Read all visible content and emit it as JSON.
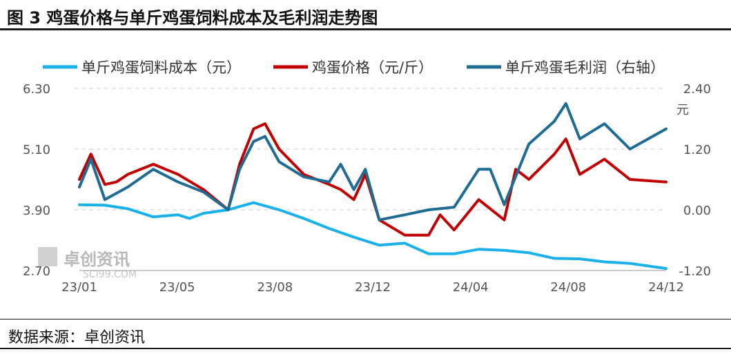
{
  "figure": {
    "title": "图 3 鸡蛋价格与单斤鸡蛋饲料成本及毛利润走势图",
    "source": "数据来源：卓创资讯",
    "watermark": "卓创资讯",
    "watermark_sub": "SCI99.COM"
  },
  "chart_data": {
    "type": "line",
    "title": "图 3 鸡蛋价格与单斤鸡蛋饲料成本及毛利润走势图",
    "xlabel": "",
    "ylabel": "",
    "y2label": "元",
    "x_ticks": [
      "23/01",
      "23/05",
      "23/08",
      "23/12",
      "24/04",
      "24/08",
      "24/12"
    ],
    "x_range": [
      "2023-01",
      "2024-12"
    ],
    "ylim": [
      2.7,
      6.3
    ],
    "y_ticks": [
      "6.30",
      "5.10",
      "3.90",
      "2.70"
    ],
    "y2lim": [
      -1.2,
      2.4
    ],
    "y2_ticks": [
      "2.40",
      "1.20",
      "0.00",
      "-1.20"
    ],
    "grid": "horizontal dashed",
    "legend_position": "top",
    "series": [
      {
        "name": "单斤鸡蛋饲料成本（元）",
        "axis": "left",
        "color": "#1ab0e8",
        "x": [
          "2023-01-01",
          "2023-02-01",
          "2023-03-01",
          "2023-04-01",
          "2023-05-01",
          "2023-05-15",
          "2023-06-01",
          "2023-07-01",
          "2023-08-01",
          "2023-09-01",
          "2023-10-01",
          "2023-11-01",
          "2023-12-01",
          "2024-01-01",
          "2024-02-01",
          "2024-03-01",
          "2024-04-01",
          "2024-05-01",
          "2024-06-01",
          "2024-07-01",
          "2024-08-01",
          "2024-09-01",
          "2024-10-01",
          "2024-11-01",
          "2024-12-15"
        ],
        "values": [
          4.0,
          3.99,
          3.92,
          3.76,
          3.8,
          3.73,
          3.83,
          3.9,
          4.04,
          3.9,
          3.73,
          3.53,
          3.36,
          3.2,
          3.24,
          3.03,
          3.03,
          3.12,
          3.1,
          3.05,
          2.94,
          2.93,
          2.87,
          2.84,
          2.74
        ]
      },
      {
        "name": "鸡蛋价格（元/斤）",
        "axis": "left",
        "color": "#c00000",
        "x": [
          "2023-01-01",
          "2023-01-15",
          "2023-02-01",
          "2023-02-15",
          "2023-03-01",
          "2023-04-01",
          "2023-05-01",
          "2023-06-01",
          "2023-07-01",
          "2023-07-15",
          "2023-08-01",
          "2023-08-15",
          "2023-09-01",
          "2023-10-01",
          "2023-11-01",
          "2023-11-15",
          "2023-12-01",
          "2023-12-15",
          "2024-01-01",
          "2024-02-01",
          "2024-03-01",
          "2024-03-15",
          "2024-04-01",
          "2024-05-01",
          "2024-06-01",
          "2024-06-15",
          "2024-07-01",
          "2024-08-01",
          "2024-08-15",
          "2024-09-01",
          "2024-10-01",
          "2024-11-01",
          "2024-12-15"
        ],
        "values": [
          4.5,
          5.0,
          4.4,
          4.45,
          4.6,
          4.8,
          4.6,
          4.3,
          3.9,
          4.8,
          5.5,
          5.6,
          5.1,
          4.6,
          4.4,
          4.3,
          4.1,
          4.6,
          3.7,
          3.4,
          3.4,
          3.8,
          3.5,
          4.1,
          3.7,
          4.7,
          4.5,
          5.0,
          5.3,
          4.6,
          4.9,
          4.5,
          4.45
        ]
      },
      {
        "name": "单斤鸡蛋毛利润（右轴）",
        "axis": "right",
        "color": "#1e6c93",
        "x": [
          "2023-01-01",
          "2023-01-15",
          "2023-02-01",
          "2023-03-01",
          "2023-04-01",
          "2023-05-01",
          "2023-06-01",
          "2023-07-01",
          "2023-07-15",
          "2023-08-01",
          "2023-08-15",
          "2023-09-01",
          "2023-10-01",
          "2023-11-01",
          "2023-11-15",
          "2023-12-01",
          "2023-12-15",
          "2024-01-01",
          "2024-02-01",
          "2024-03-01",
          "2024-04-01",
          "2024-05-01",
          "2024-05-15",
          "2024-06-01",
          "2024-07-01",
          "2024-08-01",
          "2024-08-15",
          "2024-09-01",
          "2024-10-01",
          "2024-11-01",
          "2024-12-15"
        ],
        "values": [
          0.45,
          1.0,
          0.2,
          0.45,
          0.8,
          0.55,
          0.35,
          0.0,
          0.8,
          1.35,
          1.45,
          0.95,
          0.65,
          0.55,
          0.9,
          0.4,
          0.8,
          -0.2,
          -0.1,
          0.0,
          0.05,
          0.8,
          0.8,
          0.1,
          1.3,
          1.75,
          2.1,
          1.4,
          1.7,
          1.2,
          1.6
        ]
      }
    ]
  }
}
